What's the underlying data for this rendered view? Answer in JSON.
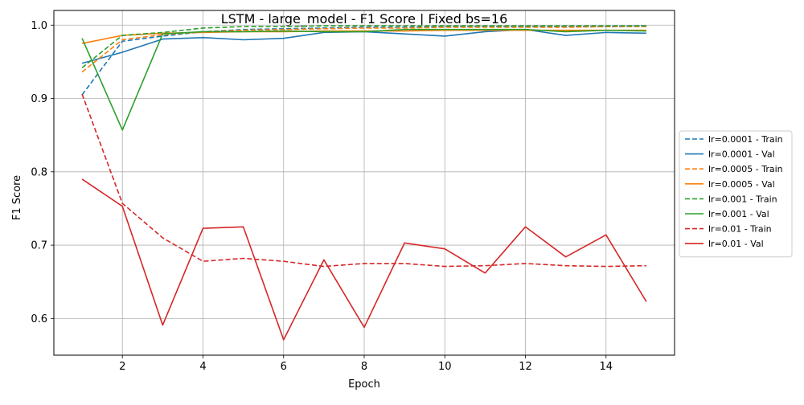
{
  "chart_data": {
    "type": "line",
    "title": "LSTM - large_model - F1 Score | Fixed bs=16",
    "xlabel": "Epoch",
    "ylabel": "F1 Score",
    "xlim": [
      0.3,
      15.7
    ],
    "ylim": [
      0.55,
      1.02
    ],
    "xticks": [
      2,
      4,
      6,
      8,
      10,
      12,
      14
    ],
    "yticks": [
      0.6,
      0.7,
      0.8,
      0.9,
      1.0
    ],
    "grid": true,
    "legend_position": "right",
    "x": [
      1,
      2,
      3,
      4,
      5,
      6,
      7,
      8,
      9,
      10,
      11,
      12,
      13,
      14,
      15
    ],
    "series": [
      {
        "name": "lr=0.0001 - Train",
        "color": "#1f77b4",
        "style": "dashed",
        "values": [
          0.905,
          0.978,
          0.985,
          0.991,
          0.994,
          0.995,
          0.996,
          0.997,
          0.997,
          0.998,
          0.998,
          0.998,
          0.998,
          0.998,
          0.999
        ]
      },
      {
        "name": "lr=0.0001 - Val",
        "color": "#1f77b4",
        "style": "solid",
        "values": [
          0.948,
          0.963,
          0.981,
          0.983,
          0.98,
          0.982,
          0.99,
          0.991,
          0.988,
          0.985,
          0.991,
          0.994,
          0.986,
          0.99,
          0.989
        ]
      },
      {
        "name": "lr=0.0005 - Train",
        "color": "#ff7f0e",
        "style": "dashed",
        "values": [
          0.936,
          0.98,
          0.987,
          0.991,
          0.993,
          0.994,
          0.995,
          0.996,
          0.996,
          0.997,
          0.997,
          0.997,
          0.997,
          0.998,
          0.998
        ]
      },
      {
        "name": "lr=0.0005 - Val",
        "color": "#ff7f0e",
        "style": "solid",
        "values": [
          0.975,
          0.986,
          0.989,
          0.99,
          0.991,
          0.991,
          0.992,
          0.992,
          0.992,
          0.993,
          0.993,
          0.993,
          0.993,
          0.993,
          0.993
        ]
      },
      {
        "name": "lr=0.001 - Train",
        "color": "#2ca02c",
        "style": "dashed",
        "values": [
          0.942,
          0.986,
          0.99,
          0.996,
          0.998,
          0.998,
          0.999,
          0.999,
          0.999,
          0.999,
          0.999,
          0.999,
          0.999,
          0.999,
          0.999
        ]
      },
      {
        "name": "lr=0.001 - Val",
        "color": "#2ca02c",
        "style": "solid",
        "values": [
          0.982,
          0.857,
          0.988,
          0.991,
          0.991,
          0.992,
          0.991,
          0.991,
          0.994,
          0.994,
          0.994,
          0.994,
          0.991,
          0.993,
          0.992
        ]
      },
      {
        "name": "lr=0.01 - Train",
        "color": "#d62728",
        "style": "dashed",
        "values": [
          0.906,
          0.757,
          0.71,
          0.678,
          0.682,
          0.678,
          0.671,
          0.675,
          0.675,
          0.671,
          0.672,
          0.675,
          0.672,
          0.671,
          0.672
        ]
      },
      {
        "name": "lr=0.01 - Val",
        "color": "#d62728",
        "style": "solid",
        "values": [
          0.79,
          0.753,
          0.591,
          0.723,
          0.725,
          0.571,
          0.68,
          0.588,
          0.703,
          0.695,
          0.662,
          0.725,
          0.684,
          0.714,
          0.623
        ]
      }
    ]
  }
}
